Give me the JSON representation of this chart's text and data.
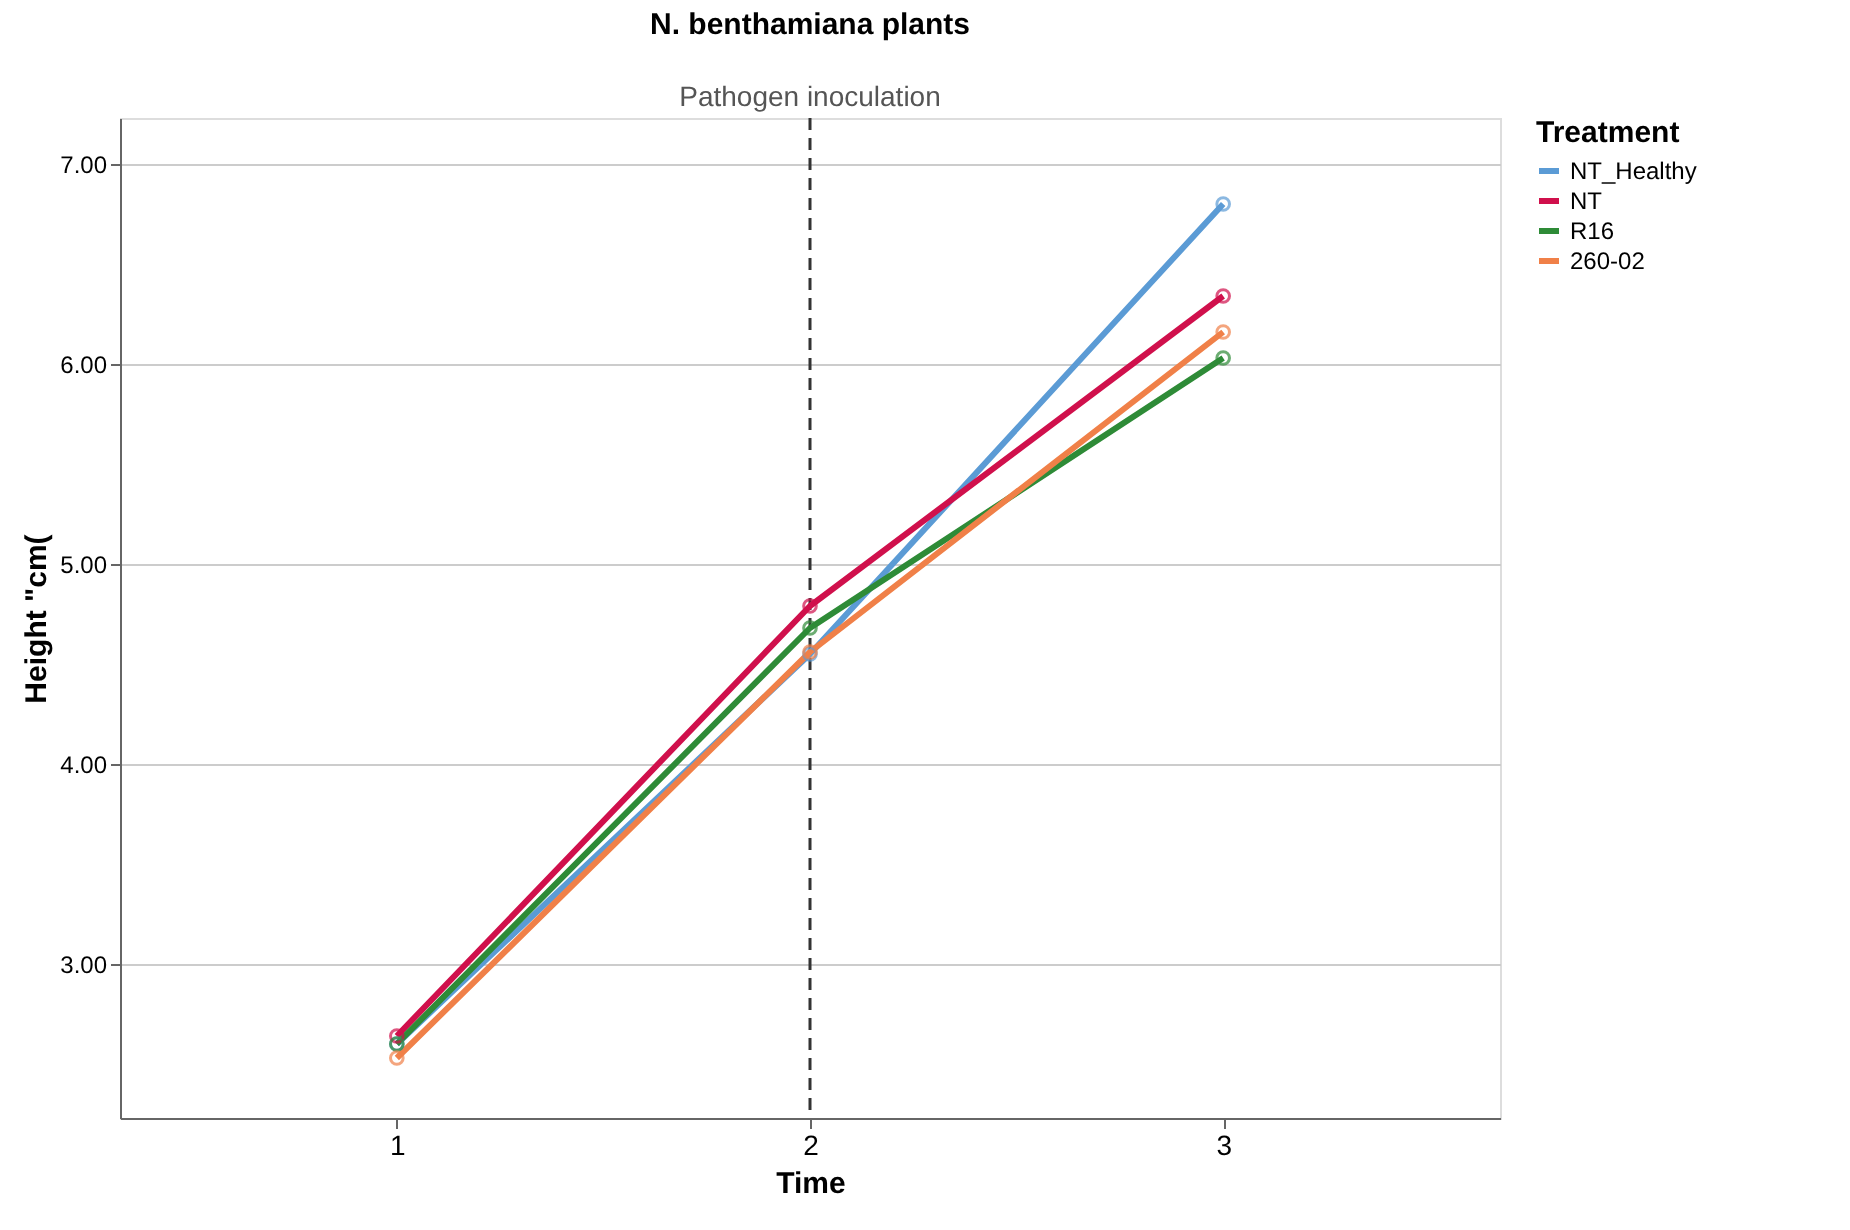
{
  "chart_data": {
    "type": "line",
    "title": "N. benthamiana plants",
    "xlabel": "Time",
    "ylabel": "Height \"cm(",
    "legend_title": "Treatment",
    "x": [
      1,
      2,
      3
    ],
    "series": [
      {
        "name": "NT_Healthy",
        "color": "#5b9bd5",
        "values": [
          2.6,
          4.55,
          6.8
        ]
      },
      {
        "name": "NT",
        "color": "#d0104c",
        "values": [
          2.64,
          4.79,
          6.34
        ]
      },
      {
        "name": "R16",
        "color": "#2e8b37",
        "values": [
          2.6,
          4.68,
          6.03
        ]
      },
      {
        "name": "260-02",
        "color": "#f08048",
        "values": [
          2.53,
          4.56,
          6.16
        ]
      }
    ],
    "xlim": [
      0.33,
      3.67
    ],
    "xticks": [
      1,
      2,
      3
    ],
    "ylim": [
      2.23,
      7.23
    ],
    "yticks": [
      {
        "value": 3,
        "label": "3.00"
      },
      {
        "value": 4,
        "label": "4.00"
      },
      {
        "value": 5,
        "label": "5.00"
      },
      {
        "value": 6,
        "label": "6.00"
      },
      {
        "value": 7,
        "label": "7.00"
      }
    ],
    "ref_lines": [
      {
        "axis": "x",
        "value": 2,
        "label": "Pathogen inoculation",
        "line_style": "dashed",
        "color": "#333333"
      }
    ],
    "grid": "y",
    "legend": "right",
    "marker": "circle",
    "line_style": "solid"
  }
}
